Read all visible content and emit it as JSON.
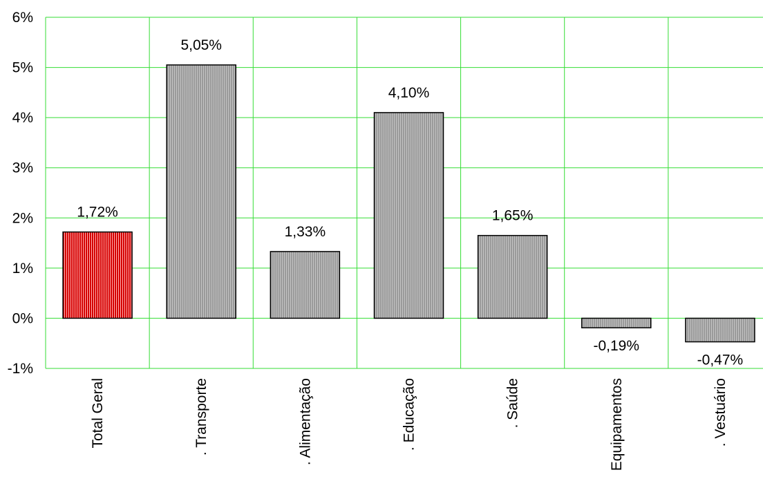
{
  "chart_data": {
    "type": "bar",
    "categories": [
      "Total Geral",
      ". Transporte",
      ". Alimentação",
      ". Educação",
      ". Saúde",
      "Equipamentos",
      ". Vestuário"
    ],
    "values": [
      1.72,
      5.05,
      1.33,
      4.1,
      1.65,
      -0.19,
      -0.47
    ],
    "data_labels": [
      "1,72%",
      "5,05%",
      "1,33%",
      "4,10%",
      "1,65%",
      "-0,19%",
      "-0,47%"
    ],
    "y_ticks": [
      -1,
      0,
      1,
      2,
      3,
      4,
      5,
      6
    ],
    "y_tick_labels": [
      "-1%",
      "0%",
      "1%",
      "2%",
      "3%",
      "4%",
      "5%",
      "6%"
    ],
    "ylim": [
      -1,
      6
    ],
    "title": "",
    "xlabel": "",
    "ylabel": "",
    "grid": true,
    "colors": {
      "grid": "#33dd33",
      "highlight_bar": "#d40000",
      "highlight_stripe": "#ffb0b0",
      "bar": "#9a9a9a",
      "bar_stripe": "#c4c4c4",
      "bar_outline": "#000000"
    }
  }
}
